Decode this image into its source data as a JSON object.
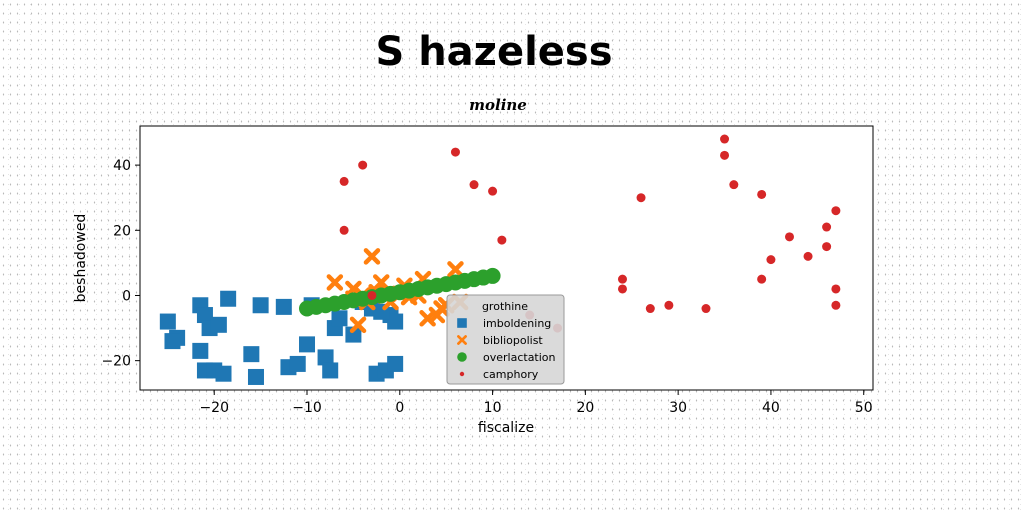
{
  "chart_data": {
    "type": "scatter",
    "title": "S hazeless",
    "subtitle": "moline",
    "xlabel": "fiscalize",
    "ylabel": "beshadowed",
    "xlim": [
      -28,
      51
    ],
    "ylim": [
      -29,
      52
    ],
    "xticks": [
      -20,
      -10,
      0,
      10,
      20,
      30,
      40,
      50
    ],
    "yticks": [
      -20,
      0,
      20,
      40
    ],
    "grid": false,
    "legend_position": "lower center",
    "legend_title": "grothine",
    "colors": {
      "imboldening": "#1f77b4",
      "bibliopolist": "#ff7f0e",
      "overlactation": "#2ca02c",
      "camphory": "#d62728"
    },
    "series": [
      {
        "name": "imboldening",
        "marker": "square",
        "points": [
          [
            -25,
            -8
          ],
          [
            -24,
            -13
          ],
          [
            -24.5,
            -14
          ],
          [
            -21.5,
            -3
          ],
          [
            -21,
            -6
          ],
          [
            -20.5,
            -10
          ],
          [
            -19.5,
            -9
          ],
          [
            -21.5,
            -17
          ],
          [
            -21,
            -23
          ],
          [
            -20,
            -23
          ],
          [
            -19,
            -24
          ],
          [
            -18.5,
            -1
          ],
          [
            -16,
            -18
          ],
          [
            -15.5,
            -25
          ],
          [
            -15,
            -3
          ],
          [
            -12.5,
            -3.5
          ],
          [
            -12,
            -22
          ],
          [
            -11,
            -21
          ],
          [
            -10,
            -15
          ],
          [
            -9.5,
            -3
          ],
          [
            -8,
            -19
          ],
          [
            -7.5,
            -23
          ],
          [
            -7,
            -10
          ],
          [
            -6.5,
            -7
          ],
          [
            -5,
            -12
          ],
          [
            -4,
            -2
          ],
          [
            -3,
            -4
          ],
          [
            -2.5,
            -24
          ],
          [
            -1.5,
            -23
          ],
          [
            -1,
            -6
          ],
          [
            -0.5,
            -21
          ],
          [
            -0.5,
            -8
          ],
          [
            -2,
            -5
          ]
        ]
      },
      {
        "name": "bibliopolist",
        "marker": "x",
        "points": [
          [
            -7,
            4
          ],
          [
            -5,
            -1
          ],
          [
            -5,
            2
          ],
          [
            -4,
            0
          ],
          [
            -3.5,
            -2
          ],
          [
            -3,
            12
          ],
          [
            -2.5,
            1
          ],
          [
            -2,
            4
          ],
          [
            -1.5,
            0
          ],
          [
            -1,
            -2
          ],
          [
            0,
            0.5
          ],
          [
            0.5,
            3
          ],
          [
            1,
            -0.5
          ],
          [
            2,
            0
          ],
          [
            2.5,
            5
          ],
          [
            3,
            -7
          ],
          [
            4,
            -6
          ],
          [
            4.5,
            -4
          ],
          [
            5,
            -3
          ],
          [
            6,
            8
          ],
          [
            6.5,
            -2
          ],
          [
            -4.5,
            -9
          ]
        ]
      },
      {
        "name": "overlactation",
        "marker": "circle",
        "points": [
          [
            -10,
            -4
          ],
          [
            -9,
            -3.5
          ],
          [
            -8,
            -3
          ],
          [
            -7,
            -2.5
          ],
          [
            -6,
            -2
          ],
          [
            -5,
            -1.5
          ],
          [
            -4,
            -1
          ],
          [
            -3,
            -0.5
          ],
          [
            -2,
            0
          ],
          [
            -1,
            0.5
          ],
          [
            0,
            1
          ],
          [
            1,
            1.5
          ],
          [
            2,
            2
          ],
          [
            3,
            2.5
          ],
          [
            4,
            3
          ],
          [
            5,
            3.5
          ],
          [
            6,
            4
          ],
          [
            7,
            4.5
          ],
          [
            8,
            5
          ],
          [
            9,
            5.5
          ],
          [
            10,
            6
          ]
        ]
      },
      {
        "name": "camphory",
        "marker": "dot",
        "points": [
          [
            -6,
            35
          ],
          [
            -6,
            20
          ],
          [
            -4,
            40
          ],
          [
            -3,
            0
          ],
          [
            6,
            44
          ],
          [
            8,
            34
          ],
          [
            10,
            32
          ],
          [
            11,
            17
          ],
          [
            14,
            -6
          ],
          [
            17,
            -10
          ],
          [
            24,
            5
          ],
          [
            24,
            2
          ],
          [
            26,
            30
          ],
          [
            27,
            -4
          ],
          [
            29,
            -3
          ],
          [
            33,
            -4
          ],
          [
            35,
            48
          ],
          [
            35,
            43
          ],
          [
            36,
            34
          ],
          [
            39,
            31
          ],
          [
            39,
            5
          ],
          [
            40,
            11
          ],
          [
            42,
            18
          ],
          [
            44,
            12
          ],
          [
            46,
            21
          ],
          [
            46,
            15
          ],
          [
            47,
            26
          ],
          [
            47,
            2
          ],
          [
            47,
            -3
          ]
        ]
      }
    ]
  }
}
